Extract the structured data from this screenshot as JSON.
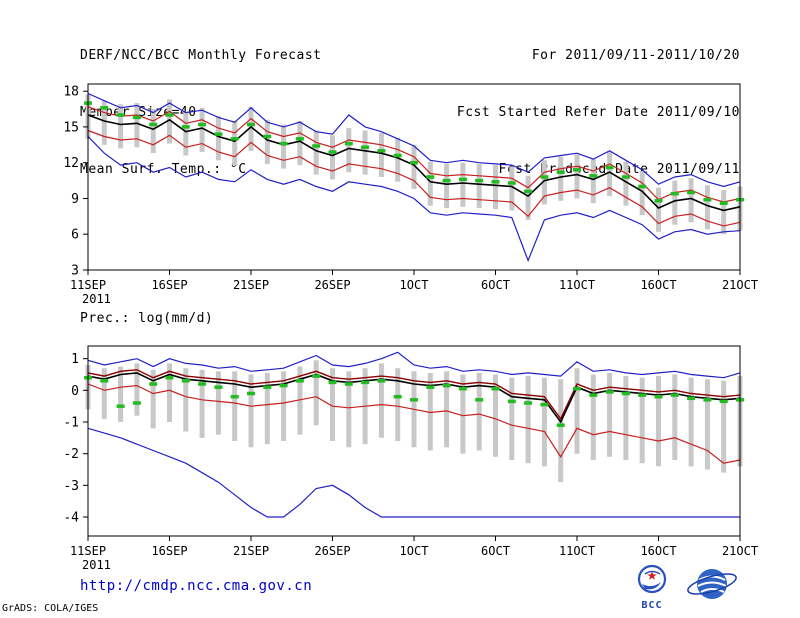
{
  "header": {
    "left": [
      "DERF/NCC/BCC Monthly Forecast",
      "Member Size=40",
      "Mean Surf. Temp.: °C"
    ],
    "right": [
      "For 2011/09/11-2011/10/20",
      "Fcst Started Refer Date 2011/09/10",
      "Fcst Produced Date 2011/09/11"
    ]
  },
  "panel2_label": "Prec.: log(mm/d)",
  "footer": {
    "url": "http://cmdp.ncc.cma.gov.cn",
    "credit": "GrADS: COLA/IGES",
    "bcc_logo_text": "BCC",
    "logo_icons": [
      "bcc-logo",
      "cma-ncc-logo"
    ],
    "brand_blue": "#2a52be",
    "url_blue": "#0000cc"
  },
  "chart_data": [
    {
      "type": "line",
      "panel": "temperature",
      "title": "Mean Surf. Temp.: °C",
      "xlim": [
        0,
        40
      ],
      "ylim": [
        3,
        18.6
      ],
      "yticks": [
        18,
        15,
        12,
        9,
        6,
        3
      ],
      "x_ticks": [
        {
          "label": "11SEP",
          "day": 0
        },
        {
          "label": "16SEP",
          "day": 5
        },
        {
          "label": "21SEP",
          "day": 10
        },
        {
          "label": "26SEP",
          "day": 15
        },
        {
          "label": "1OCT",
          "day": 20
        },
        {
          "label": "6OCT",
          "day": 25
        },
        {
          "label": "11OCT",
          "day": 30
        },
        {
          "label": "16OCT",
          "day": 35
        },
        {
          "label": "21OCT",
          "day": 40
        }
      ],
      "x_sublabel": "2011",
      "bars": {
        "name": "ensemble-spread",
        "color": "#c8c8c8",
        "upper": [
          17.7,
          17.2,
          16.9,
          17.0,
          16.5,
          17.3,
          16.3,
          16.6,
          15.9,
          15.5,
          16.7,
          15.6,
          15.2,
          15.5,
          14.7,
          14.3,
          14.9,
          14.7,
          14.5,
          14.1,
          13.5,
          12.1,
          11.9,
          12.0,
          11.9,
          11.8,
          11.7,
          10.9,
          12.2,
          12.5,
          12.7,
          12.3,
          12.9,
          12.1,
          11.3,
          9.9,
          10.5,
          10.7,
          10.1,
          9.7,
          10.0
        ],
        "lower": [
          14.0,
          13.5,
          13.2,
          13.3,
          12.8,
          13.6,
          12.6,
          12.9,
          12.2,
          11.8,
          13.0,
          11.9,
          11.5,
          11.8,
          11.0,
          10.6,
          11.2,
          11.0,
          10.8,
          10.4,
          9.8,
          8.4,
          8.2,
          8.3,
          8.2,
          8.1,
          8.0,
          7.2,
          8.5,
          8.8,
          9.0,
          8.6,
          9.2,
          8.4,
          7.6,
          6.2,
          6.8,
          7.0,
          6.4,
          6.0,
          6.3
        ]
      },
      "series": [
        {
          "name": "ensemble-max",
          "color": "#2020c8",
          "width": 1.2,
          "values": [
            17.8,
            17.2,
            16.6,
            16.8,
            16.2,
            17.0,
            16.2,
            16.4,
            15.8,
            15.4,
            16.6,
            15.4,
            15.0,
            15.4,
            14.6,
            14.4,
            16.0,
            15.0,
            14.6,
            14.0,
            13.4,
            12.2,
            12.0,
            12.2,
            12.0,
            11.9,
            11.8,
            11.2,
            12.4,
            12.6,
            12.8,
            12.3,
            13.0,
            12.2,
            11.4,
            10.2,
            10.8,
            11.0,
            10.4,
            10.0,
            10.4
          ]
        },
        {
          "name": "ensemble-min",
          "color": "#2020c8",
          "width": 1.2,
          "values": [
            14.2,
            12.8,
            11.8,
            12.0,
            11.2,
            11.6,
            10.8,
            11.2,
            10.6,
            10.4,
            11.4,
            10.6,
            10.2,
            10.6,
            10.0,
            9.6,
            10.4,
            10.2,
            10.0,
            9.6,
            9.0,
            7.8,
            7.6,
            7.8,
            7.7,
            7.6,
            7.4,
            3.8,
            7.2,
            7.6,
            7.8,
            7.4,
            8.0,
            7.4,
            6.8,
            5.6,
            6.2,
            6.4,
            6.0,
            6.2,
            6.3
          ]
        },
        {
          "name": "upper-quartile",
          "color": "#c82020",
          "width": 1.2,
          "values": [
            16.7,
            16.2,
            15.9,
            16.0,
            15.5,
            16.3,
            15.3,
            15.6,
            14.9,
            14.5,
            15.7,
            14.6,
            14.2,
            14.5,
            13.7,
            13.3,
            13.9,
            13.7,
            13.5,
            13.1,
            12.5,
            11.1,
            10.9,
            11.0,
            10.9,
            10.8,
            10.7,
            9.9,
            11.2,
            11.5,
            11.7,
            11.3,
            11.9,
            11.1,
            10.3,
            8.9,
            9.5,
            9.7,
            9.1,
            8.7,
            9.0
          ]
        },
        {
          "name": "lower-quartile",
          "color": "#c82020",
          "width": 1.2,
          "values": [
            14.7,
            14.2,
            13.9,
            14.0,
            13.5,
            14.3,
            13.3,
            13.6,
            12.9,
            12.5,
            13.7,
            12.6,
            12.2,
            12.5,
            11.7,
            11.3,
            11.9,
            11.7,
            11.5,
            11.1,
            10.5,
            9.1,
            8.9,
            9.0,
            8.9,
            8.8,
            8.7,
            7.5,
            9.2,
            9.5,
            9.7,
            9.3,
            9.9,
            9.1,
            8.3,
            6.9,
            7.5,
            7.7,
            7.1,
            6.7,
            7.0
          ]
        },
        {
          "name": "ensemble-mean",
          "color": "#000000",
          "width": 1.6,
          "values": [
            16.0,
            15.5,
            15.2,
            15.3,
            14.8,
            15.6,
            14.6,
            14.9,
            14.2,
            13.8,
            15.0,
            13.9,
            13.5,
            13.8,
            13.0,
            12.6,
            13.2,
            13.0,
            12.8,
            12.4,
            11.8,
            10.4,
            10.2,
            10.3,
            10.2,
            10.1,
            10.0,
            9.2,
            10.5,
            10.8,
            11.0,
            10.6,
            11.2,
            10.4,
            9.6,
            8.2,
            8.8,
            9.0,
            8.4,
            8.0,
            8.3
          ]
        }
      ],
      "markers": {
        "name": "observation",
        "color": "#22bb22",
        "values": [
          17.0,
          16.6,
          16.0,
          15.8,
          15.2,
          16.0,
          15.0,
          15.2,
          14.4,
          14.0,
          15.2,
          14.2,
          13.6,
          14.0,
          13.4,
          12.9,
          13.6,
          13.3,
          13.0,
          12.6,
          12.0,
          10.8,
          10.5,
          10.6,
          10.5,
          10.4,
          10.3,
          9.6,
          10.8,
          11.2,
          11.4,
          10.9,
          11.6,
          10.8,
          10.0,
          8.8,
          9.4,
          9.5,
          8.9,
          8.6,
          8.9
        ]
      }
    },
    {
      "type": "line",
      "panel": "precipitation",
      "title": "Prec.: log(mm/d)",
      "xlim": [
        0,
        40
      ],
      "ylim": [
        -4.6,
        1.4
      ],
      "yticks": [
        1,
        0,
        -1,
        -2,
        -3,
        -4
      ],
      "x_ticks": [
        {
          "label": "11SEP",
          "day": 0
        },
        {
          "label": "16SEP",
          "day": 5
        },
        {
          "label": "21SEP",
          "day": 10
        },
        {
          "label": "26SEP",
          "day": 15
        },
        {
          "label": "1OCT",
          "day": 20
        },
        {
          "label": "6OCT",
          "day": 25
        },
        {
          "label": "11OCT",
          "day": 30
        },
        {
          "label": "16OCT",
          "day": 35
        },
        {
          "label": "21OCT",
          "day": 40
        }
      ],
      "x_sublabel": "2011",
      "bars": {
        "name": "ensemble-spread",
        "color": "#c8c8c8",
        "upper": [
          0.8,
          0.7,
          0.75,
          0.85,
          0.65,
          0.85,
          0.7,
          0.65,
          0.6,
          0.6,
          0.5,
          0.55,
          0.6,
          0.75,
          0.95,
          0.7,
          0.6,
          0.7,
          0.85,
          0.7,
          0.6,
          0.55,
          0.6,
          0.5,
          0.55,
          0.5,
          0.4,
          0.45,
          0.4,
          0.35,
          0.7,
          0.5,
          0.55,
          0.45,
          0.4,
          0.45,
          0.5,
          0.4,
          0.35,
          0.3,
          0.45
        ],
        "lower": [
          -0.6,
          -0.9,
          -1.0,
          -0.8,
          -1.2,
          -1.0,
          -1.3,
          -1.5,
          -1.4,
          -1.6,
          -1.8,
          -1.7,
          -1.6,
          -1.4,
          -1.1,
          -1.6,
          -1.8,
          -1.7,
          -1.5,
          -1.6,
          -1.8,
          -1.9,
          -1.8,
          -2.0,
          -1.9,
          -2.1,
          -2.2,
          -2.3,
          -2.4,
          -2.9,
          -2.0,
          -2.2,
          -2.1,
          -2.2,
          -2.3,
          -2.4,
          -2.2,
          -2.4,
          -2.5,
          -2.6,
          -2.4
        ]
      },
      "series": [
        {
          "name": "ensemble-max",
          "color": "#2020c8",
          "width": 1.2,
          "values": [
            0.95,
            0.8,
            0.9,
            1.0,
            0.75,
            1.0,
            0.85,
            0.8,
            0.7,
            0.75,
            0.6,
            0.65,
            0.7,
            0.9,
            1.1,
            0.8,
            0.75,
            0.85,
            1.0,
            1.2,
            0.8,
            0.7,
            0.75,
            0.6,
            0.65,
            0.6,
            0.5,
            0.55,
            0.5,
            0.45,
            0.9,
            0.6,
            0.65,
            0.55,
            0.5,
            0.55,
            0.6,
            0.5,
            0.45,
            0.4,
            0.55
          ]
        },
        {
          "name": "ensemble-min",
          "color": "#2020c8",
          "width": 1.2,
          "values": [
            -1.2,
            -1.35,
            -1.5,
            -1.7,
            -1.9,
            -2.1,
            -2.3,
            -2.6,
            -2.9,
            -3.3,
            -3.7,
            -4.0,
            -4.0,
            -3.6,
            -3.1,
            -3.0,
            -3.3,
            -3.7,
            -4.0,
            -4.0,
            -4.0,
            -4.0,
            -4.0,
            -4.0,
            -4.0,
            -4.0,
            -4.0,
            -4.0,
            -4.0,
            -4.0,
            -4.0,
            -4.0,
            -4.0,
            -4.0,
            -4.0,
            -4.0,
            -4.0,
            -4.0,
            -4.0,
            -4.0,
            -4.0
          ]
        },
        {
          "name": "upper-quartile",
          "color": "#8b0000",
          "width": 1.4,
          "values": [
            0.55,
            0.45,
            0.6,
            0.65,
            0.4,
            0.6,
            0.45,
            0.4,
            0.35,
            0.3,
            0.2,
            0.25,
            0.3,
            0.45,
            0.6,
            0.4,
            0.35,
            0.4,
            0.45,
            0.4,
            0.3,
            0.25,
            0.3,
            0.2,
            0.25,
            0.2,
            -0.1,
            -0.15,
            -0.2,
            -0.9,
            0.2,
            0.0,
            0.1,
            0.05,
            0.0,
            -0.05,
            0.0,
            -0.1,
            -0.15,
            -0.2,
            -0.15
          ]
        },
        {
          "name": "lower-quartile",
          "color": "#c82020",
          "width": 1.2,
          "values": [
            0.2,
            0.0,
            0.1,
            0.15,
            -0.1,
            0.0,
            -0.2,
            -0.3,
            -0.35,
            -0.4,
            -0.5,
            -0.45,
            -0.4,
            -0.3,
            -0.2,
            -0.5,
            -0.55,
            -0.5,
            -0.45,
            -0.5,
            -0.6,
            -0.7,
            -0.65,
            -0.8,
            -0.75,
            -0.9,
            -1.1,
            -1.2,
            -1.3,
            -2.1,
            -1.2,
            -1.4,
            -1.3,
            -1.4,
            -1.5,
            -1.6,
            -1.5,
            -1.7,
            -1.9,
            -2.3,
            -2.2
          ]
        },
        {
          "name": "ensemble-mean",
          "color": "#000000",
          "width": 1.6,
          "values": [
            0.45,
            0.35,
            0.5,
            0.55,
            0.3,
            0.5,
            0.35,
            0.3,
            0.25,
            0.2,
            0.1,
            0.15,
            0.2,
            0.35,
            0.5,
            0.3,
            0.25,
            0.3,
            0.35,
            0.3,
            0.2,
            0.15,
            0.2,
            0.1,
            0.15,
            0.1,
            -0.2,
            -0.25,
            -0.3,
            -1.0,
            0.1,
            -0.1,
            0.0,
            -0.05,
            -0.1,
            -0.15,
            -0.1,
            -0.2,
            -0.25,
            -0.3,
            -0.25
          ]
        }
      ],
      "markers": {
        "name": "observation",
        "color": "#22bb22",
        "values": [
          0.4,
          0.3,
          -0.5,
          -0.4,
          0.2,
          0.4,
          0.3,
          0.2,
          0.1,
          -0.2,
          -0.1,
          0.1,
          0.15,
          0.3,
          0.45,
          0.25,
          0.2,
          0.25,
          0.3,
          -0.2,
          -0.3,
          0.1,
          0.15,
          0.05,
          -0.3,
          0.05,
          -0.35,
          -0.4,
          -0.45,
          -1.1,
          0.05,
          -0.15,
          -0.05,
          -0.1,
          -0.15,
          -0.2,
          -0.15,
          -0.25,
          -0.3,
          -0.35,
          -0.3
        ]
      }
    }
  ]
}
